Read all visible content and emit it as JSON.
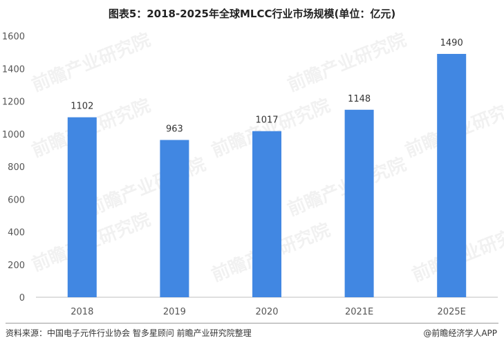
{
  "title": "图表5：2018-2025年全球MLCC行业市场规模(单位：亿元)",
  "source": "资料来源：中国电子元件行业协会 智多星顾问 前瞻产业研究院整理",
  "brand": "@前瞻经济学人APP",
  "watermark": "前瞻产业研究院",
  "colors": {
    "bar": "#4187e2",
    "axis": "#bfbfbf"
  },
  "chart_data": {
    "type": "bar",
    "title": "图表5：2018-2025年全球MLCC行业市场规模(单位：亿元)",
    "xlabel": "",
    "ylabel": "",
    "categories": [
      "2018",
      "2019",
      "2020",
      "2021E",
      "2025E"
    ],
    "values": [
      1102,
      963,
      1017,
      1148,
      1490
    ],
    "value_labels": [
      "1102",
      "963",
      "1017",
      "1148",
      "1490"
    ],
    "ylim": [
      0,
      1600
    ],
    "yticks": [
      0,
      200,
      400,
      600,
      800,
      1000,
      1200,
      1400,
      1600
    ],
    "ytick_labels": [
      "0",
      "200",
      "400",
      "600",
      "800",
      "1000",
      "1200",
      "1400",
      "1600"
    ],
    "grid": false,
    "legend": "none"
  }
}
